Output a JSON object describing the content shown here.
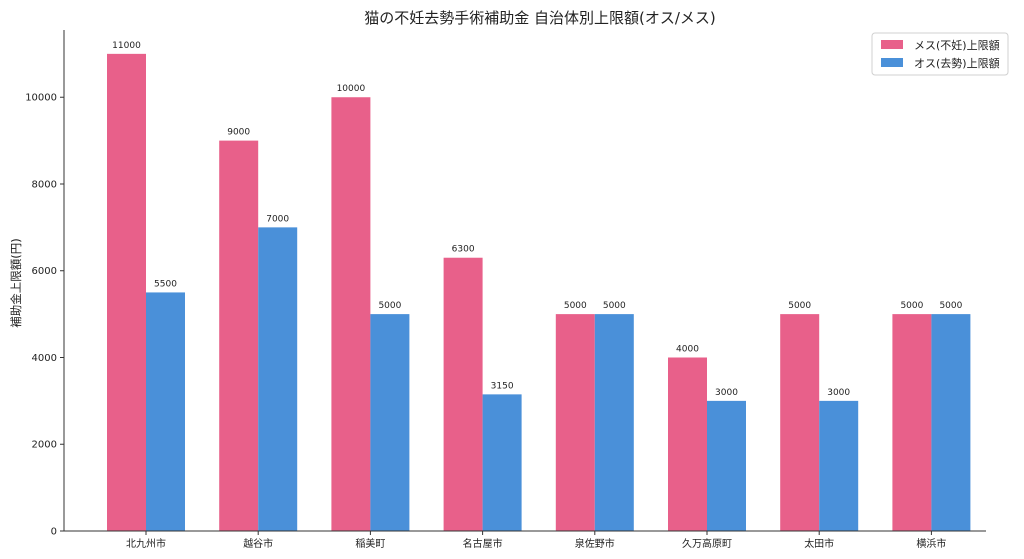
{
  "chart_data": {
    "type": "bar",
    "title": "猫の不妊去勢手術補助金 自治体別上限額(オス/メス)",
    "xlabel": "",
    "ylabel": "補助金上限額(円)",
    "categories": [
      "北九州市",
      "越谷市",
      "稲美町",
      "名古屋市",
      "泉佐野市",
      "久万高原町",
      "太田市",
      "横浜市"
    ],
    "series": [
      {
        "name": "メス(不妊)上限額",
        "color": "#e8608a",
        "values": [
          11000,
          9000,
          10000,
          6300,
          5000,
          4000,
          5000,
          5000
        ]
      },
      {
        "name": "オス(去勢)上限額",
        "color": "#4a90d9",
        "values": [
          5500,
          7000,
          5000,
          3150,
          5000,
          3000,
          3000,
          5000
        ]
      }
    ],
    "ylim": [
      0,
      11550
    ],
    "yticks": [
      0,
      2000,
      4000,
      6000,
      8000,
      10000
    ],
    "legend_position": "top-right",
    "grid": false,
    "data_labels": true
  }
}
